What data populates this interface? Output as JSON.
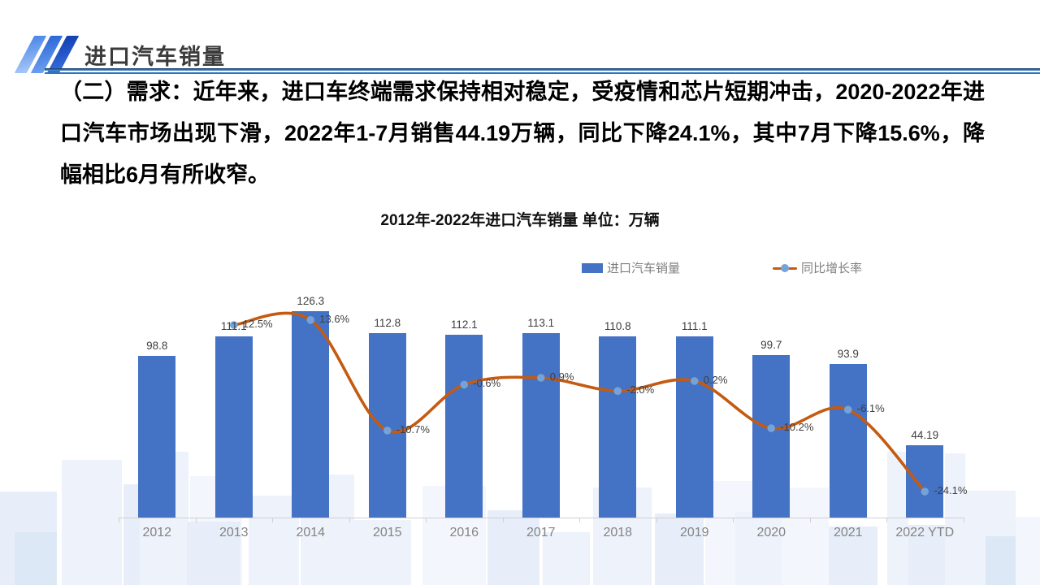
{
  "header": {
    "title": "进口汽车销量"
  },
  "intro": {
    "text": "（二）需求：近年来，进口车终端需求保持相对稳定，受疫情和芯片短期冲击，2020-2022年进口汽车市场出现下滑，2022年1-7月销售44.19万辆，同比下降24.1%，其中7月下降15.6%，降幅相比6月有所收窄。"
  },
  "chart": {
    "title_full": "2012年-2022年进口汽车销量 单位：万辆",
    "colors": {
      "bar": "#4472C4",
      "line": "#C55A11",
      "marker": "#74A3DA",
      "axis": "#d0d0d0",
      "label_text": "#3f3f3f",
      "axis_text": "#848484"
    }
  },
  "chart_data": {
    "type": "bar",
    "combo": "bar+line",
    "title": "2012年-2022年进口汽车销量",
    "unit_label": "单位：万辆",
    "xlabel": "",
    "ylabel": "万辆",
    "gridlines": false,
    "legend_position": "top",
    "categories": [
      "2012",
      "2013",
      "2014",
      "2015",
      "2016",
      "2017",
      "2018",
      "2019",
      "2020",
      "2021",
      "2022 YTD"
    ],
    "series": [
      {
        "name": "进口汽车销量",
        "type": "bar",
        "unit": "万辆",
        "values": [
          98.8,
          111.1,
          126.3,
          112.8,
          112.1,
          113.1,
          110.8,
          111.1,
          99.7,
          93.9,
          44.19
        ],
        "labels": [
          "98.8",
          "111.1",
          "126.3",
          "112.8",
          "112.1",
          "113.1",
          "110.8",
          "111.1",
          "99.7",
          "93.9",
          "44.19"
        ]
      },
      {
        "name": "同比增长率",
        "type": "line",
        "unit": "%",
        "values": [
          null,
          12.5,
          13.6,
          -10.7,
          -0.6,
          0.9,
          -2.0,
          0.2,
          -10.2,
          -6.1,
          -24.1
        ],
        "labels": [
          null,
          "12.5%",
          "13.6%",
          "-10.7%",
          "-0.6%",
          "0.9%",
          "-2.0%",
          "0.2%",
          "-10.2%",
          "-6.1%",
          "-24.1%"
        ]
      }
    ]
  }
}
